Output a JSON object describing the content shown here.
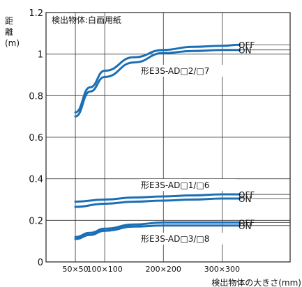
{
  "chart_data": {
    "type": "line",
    "title": "",
    "inner_note": "検出物体:白画用紙",
    "ylabel": "距離(m)",
    "xlabel": "検出物体の大きさ(mm)",
    "xlim": [
      0,
      416
    ],
    "ylim": [
      0,
      1.2
    ],
    "x_ticks": [
      {
        "value": 50,
        "label": "50×50"
      },
      {
        "value": 100,
        "label": "100×100"
      },
      {
        "value": 200,
        "label": "200×200"
      },
      {
        "value": 300,
        "label": "300×300"
      }
    ],
    "y_ticks": [
      0,
      0.2,
      0.4,
      0.6,
      0.8,
      1,
      1.2
    ],
    "y_tick_labels": [
      "0",
      "0.2",
      "0.4",
      "0.6",
      "0.8",
      "1",
      "1.2"
    ],
    "grid": true,
    "groups": [
      {
        "model": "形E3S-AD□2/□7",
        "series": [
          {
            "name": "OFF",
            "x": [
              50,
              75,
              100,
              150,
              200,
              250,
              300,
              330
            ],
            "values": [
              0.72,
              0.84,
              0.92,
              0.985,
              1.02,
              1.035,
              1.04,
              1.045
            ]
          },
          {
            "name": "ON",
            "x": [
              50,
              75,
              100,
              150,
              200,
              250,
              300,
              330
            ],
            "values": [
              0.7,
              0.82,
              0.89,
              0.96,
              1.005,
              1.015,
              1.02,
              1.02
            ]
          }
        ]
      },
      {
        "model": "形E3S-AD□1/□6",
        "series": [
          {
            "name": "OFF",
            "x": [
              50,
              100,
              150,
              200,
              250,
              300,
              330
            ],
            "values": [
              0.29,
              0.3,
              0.31,
              0.315,
              0.32,
              0.325,
              0.325
            ]
          },
          {
            "name": "ON",
            "x": [
              50,
              100,
              150,
              200,
              250,
              300,
              330
            ],
            "values": [
              0.265,
              0.28,
              0.29,
              0.295,
              0.3,
              0.305,
              0.305
            ]
          }
        ]
      },
      {
        "model": "形E3S-AD□3/□8",
        "series": [
          {
            "name": "OFF",
            "x": [
              50,
              75,
              100,
              150,
              200,
              250,
              300,
              330
            ],
            "values": [
              0.12,
              0.14,
              0.16,
              0.18,
              0.19,
              0.19,
              0.19,
              0.19
            ]
          },
          {
            "name": "ON",
            "x": [
              50,
              75,
              100,
              150,
              200,
              250,
              300,
              330
            ],
            "values": [
              0.11,
              0.13,
              0.15,
              0.17,
              0.175,
              0.175,
              0.175,
              0.175
            ]
          }
        ]
      }
    ],
    "line_color": "#1a6fb5"
  }
}
